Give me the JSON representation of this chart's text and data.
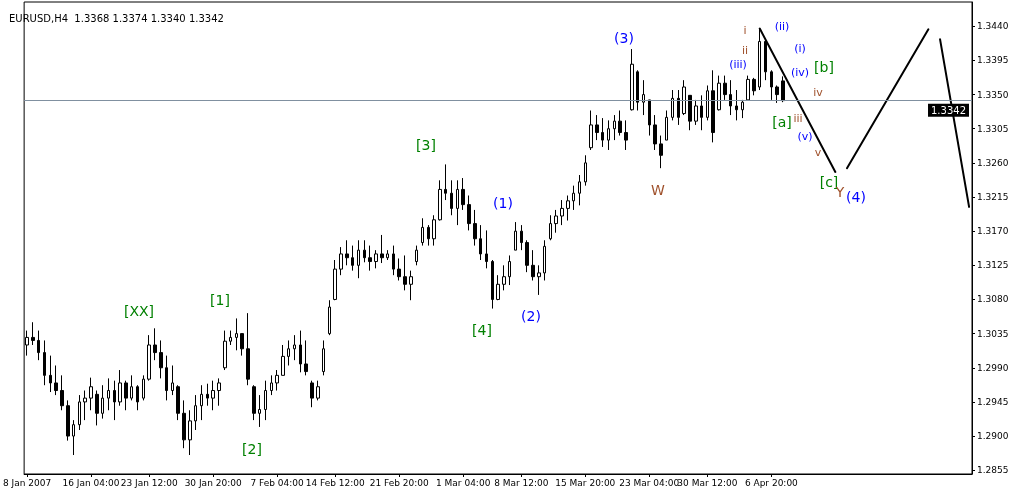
{
  "chart_data": {
    "type": "candlestick",
    "title": "EURUSD,H4  1.3368 1.3374 1.3340 1.3342",
    "color": "#000000",
    "categories": [
      "8 Jan 2007",
      null,
      null,
      null,
      null,
      null,
      null,
      null,
      null,
      null,
      null,
      "16 Jan 04:00",
      null,
      null,
      null,
      null,
      null,
      null,
      null,
      null,
      null,
      "23 Jan 12:00",
      null,
      null,
      null,
      null,
      null,
      null,
      null,
      null,
      null,
      null,
      "30 Jan 20:00",
      null,
      null,
      null,
      null,
      null,
      null,
      null,
      null,
      null,
      null,
      "7 Feb 04:00",
      null,
      null,
      null,
      null,
      null,
      null,
      null,
      null,
      null,
      "14 Feb 12:00",
      null,
      null,
      null,
      null,
      null,
      null,
      null,
      null,
      null,
      null,
      "21 Feb 20:00",
      null,
      null,
      null,
      null,
      null,
      null,
      null,
      null,
      null,
      null,
      "1 Mar 04:00",
      null,
      null,
      null,
      null,
      null,
      null,
      null,
      null,
      null,
      "8 Mar 12:00",
      null,
      null,
      null,
      null,
      null,
      null,
      null,
      null,
      null,
      null,
      "15 Mar 20:00",
      null,
      null,
      null,
      null,
      null,
      null,
      null,
      null,
      null,
      null,
      "23 Mar 04:00",
      null,
      null,
      null,
      null,
      null,
      null,
      null,
      null,
      null,
      "30 Mar 12:00",
      null,
      null,
      null,
      null,
      null,
      null,
      null,
      null,
      null,
      null,
      "6 Apr 20:00",
      null,
      null,
      null,
      null,
      null,
      null,
      null,
      null,
      null,
      null,
      null,
      null,
      null,
      null,
      null,
      null,
      null,
      null,
      null,
      null,
      null,
      null,
      null,
      null,
      null,
      null,
      null,
      null,
      null,
      null,
      null,
      null,
      null,
      null
    ],
    "ohlc": [
      [
        1.302,
        1.3039,
        1.3006,
        1.303
      ],
      [
        1.303,
        1.305,
        1.302,
        1.3026
      ],
      [
        1.3026,
        1.3039,
        1.3,
        1.301
      ],
      [
        1.301,
        1.3026,
        1.2967,
        1.298
      ],
      [
        1.298,
        1.3006,
        1.2958,
        1.297
      ],
      [
        1.297,
        1.2993,
        1.2954,
        1.296
      ],
      [
        1.296,
        1.298,
        1.2934,
        1.294
      ],
      [
        1.294,
        1.2947,
        1.2894,
        1.29
      ],
      [
        1.29,
        1.2921,
        1.2875,
        1.2915
      ],
      [
        1.2915,
        1.2954,
        1.2908,
        1.2945
      ],
      [
        1.2945,
        1.296,
        1.2921,
        1.295
      ],
      [
        1.295,
        1.2977,
        1.2934,
        1.2965
      ],
      [
        1.2955,
        1.296,
        1.2914,
        1.293
      ],
      [
        1.293,
        1.2967,
        1.2923,
        1.295
      ],
      [
        1.295,
        1.2976,
        1.2934,
        1.296
      ],
      [
        1.296,
        1.2973,
        1.2921,
        1.2945
      ],
      [
        1.2945,
        1.2987,
        1.294,
        1.297
      ],
      [
        1.297,
        1.2973,
        1.2934,
        1.295
      ],
      [
        1.295,
        1.298,
        1.2947,
        1.2965
      ],
      [
        1.2965,
        1.2967,
        1.2934,
        1.2945
      ],
      [
        1.295,
        1.298,
        1.2947,
        1.2975
      ],
      [
        1.2975,
        1.3033,
        1.2973,
        1.302
      ],
      [
        1.302,
        1.3042,
        1.3,
        1.301
      ],
      [
        1.301,
        1.3026,
        1.2976,
        1.299
      ],
      [
        1.299,
        1.3006,
        1.2947,
        1.296
      ],
      [
        1.296,
        1.2993,
        1.2954,
        1.297
      ],
      [
        1.2965,
        1.2967,
        1.2921,
        1.293
      ],
      [
        1.293,
        1.2947,
        1.2884,
        1.2895
      ],
      [
        1.2895,
        1.2934,
        1.2875,
        1.292
      ],
      [
        1.292,
        1.2954,
        1.2908,
        1.294
      ],
      [
        1.294,
        1.2967,
        1.2921,
        1.2955
      ],
      [
        1.2955,
        1.2969,
        1.294,
        1.295
      ],
      [
        1.295,
        1.2973,
        1.2934,
        1.296
      ],
      [
        1.296,
        1.2976,
        1.294,
        1.297
      ],
      [
        1.299,
        1.3039,
        1.2987,
        1.3025
      ],
      [
        1.3025,
        1.3039,
        1.302,
        1.303
      ],
      [
        1.303,
        1.3055,
        1.3013,
        1.3035
      ],
      [
        1.3035,
        1.3035,
        1.3006,
        1.3015
      ],
      [
        1.3015,
        1.3062,
        1.2967,
        1.2975
      ],
      [
        1.2965,
        1.2967,
        1.2921,
        1.293
      ],
      [
        1.293,
        1.2954,
        1.2912,
        1.2935
      ],
      [
        1.2935,
        1.2973,
        1.2921,
        1.296
      ],
      [
        1.296,
        1.298,
        1.2954,
        1.297
      ],
      [
        1.297,
        1.2987,
        1.296,
        1.298
      ],
      [
        1.298,
        1.302,
        1.298,
        1.3005
      ],
      [
        1.3005,
        1.3026,
        1.2993,
        1.3015
      ],
      [
        1.3015,
        1.3033,
        1.3,
        1.302
      ],
      [
        1.302,
        1.3039,
        1.2984,
        1.2995
      ],
      [
        1.2995,
        1.3026,
        1.298,
        1.2985
      ],
      [
        1.297,
        1.2973,
        1.2938,
        1.295
      ],
      [
        1.295,
        1.2973,
        1.2947,
        1.2965
      ],
      [
        1.2985,
        1.3026,
        1.298,
        1.3015
      ],
      [
        1.3035,
        1.3079,
        1.3033,
        1.307
      ],
      [
        1.308,
        1.3132,
        1.3079,
        1.312
      ],
      [
        1.312,
        1.3149,
        1.3112,
        1.314
      ],
      [
        1.314,
        1.3158,
        1.3125,
        1.3135
      ],
      [
        1.3135,
        1.3151,
        1.3118,
        1.3125
      ],
      [
        1.3125,
        1.3158,
        1.3108,
        1.3145
      ],
      [
        1.3145,
        1.3158,
        1.3129,
        1.3135
      ],
      [
        1.3135,
        1.3151,
        1.3118,
        1.313
      ],
      [
        1.313,
        1.3145,
        1.3121,
        1.314
      ],
      [
        1.314,
        1.3165,
        1.3128,
        1.3135
      ],
      [
        1.3135,
        1.3145,
        1.3132,
        1.314
      ],
      [
        1.314,
        1.3151,
        1.3112,
        1.312
      ],
      [
        1.312,
        1.3134,
        1.3105,
        1.311
      ],
      [
        1.311,
        1.3138,
        1.3092,
        1.31
      ],
      [
        1.31,
        1.3118,
        1.3079,
        1.311
      ],
      [
        1.313,
        1.3151,
        1.3125,
        1.3145
      ],
      [
        1.3155,
        1.3187,
        1.3151,
        1.3175
      ],
      [
        1.3175,
        1.3178,
        1.3151,
        1.316
      ],
      [
        1.316,
        1.3191,
        1.3151,
        1.3185
      ],
      [
        1.3185,
        1.3237,
        1.3184,
        1.3225
      ],
      [
        1.3225,
        1.3258,
        1.3211,
        1.322
      ],
      [
        1.322,
        1.3237,
        1.3191,
        1.32
      ],
      [
        1.32,
        1.3237,
        1.3178,
        1.3225
      ],
      [
        1.3225,
        1.324,
        1.3198,
        1.3205
      ],
      [
        1.3205,
        1.3217,
        1.3171,
        1.318
      ],
      [
        1.318,
        1.3198,
        1.3151,
        1.316
      ],
      [
        1.316,
        1.3178,
        1.3132,
        1.314
      ],
      [
        1.314,
        1.3171,
        1.3121,
        1.313
      ],
      [
        1.313,
        1.3132,
        1.3068,
        1.308
      ],
      [
        1.308,
        1.3112,
        1.3079,
        1.31
      ],
      [
        1.31,
        1.3125,
        1.3092,
        1.311
      ],
      [
        1.311,
        1.3138,
        1.3099,
        1.313
      ],
      [
        1.3145,
        1.3182,
        1.3145,
        1.317
      ],
      [
        1.317,
        1.3178,
        1.3145,
        1.3155
      ],
      [
        1.3155,
        1.3158,
        1.3116,
        1.3125
      ],
      [
        1.3125,
        1.3145,
        1.3105,
        1.311
      ],
      [
        1.311,
        1.3125,
        1.3086,
        1.3115
      ],
      [
        1.3115,
        1.3158,
        1.3105,
        1.315
      ],
      [
        1.316,
        1.3191,
        1.3158,
        1.318
      ],
      [
        1.318,
        1.3198,
        1.3168,
        1.319
      ],
      [
        1.319,
        1.3211,
        1.3178,
        1.32
      ],
      [
        1.32,
        1.3217,
        1.3184,
        1.321
      ],
      [
        1.321,
        1.323,
        1.3198,
        1.322
      ],
      [
        1.322,
        1.3244,
        1.3204,
        1.3235
      ],
      [
        1.3235,
        1.327,
        1.323,
        1.326
      ],
      [
        1.328,
        1.3329,
        1.3277,
        1.331
      ],
      [
        1.331,
        1.3323,
        1.329,
        1.33
      ],
      [
        1.33,
        1.3319,
        1.3281,
        1.329
      ],
      [
        1.329,
        1.3316,
        1.3277,
        1.3305
      ],
      [
        1.3305,
        1.3323,
        1.329,
        1.3315
      ],
      [
        1.3315,
        1.3329,
        1.3296,
        1.33
      ],
      [
        1.33,
        1.3316,
        1.3277,
        1.329
      ],
      [
        1.333,
        1.341,
        1.3329,
        1.339
      ],
      [
        1.338,
        1.3382,
        1.3329,
        1.334
      ],
      [
        1.334,
        1.3369,
        1.3323,
        1.335
      ],
      [
        1.3343,
        1.3343,
        1.3296,
        1.331
      ],
      [
        1.331,
        1.3323,
        1.3277,
        1.3285
      ],
      [
        1.3285,
        1.3296,
        1.3253,
        1.327
      ],
      [
        1.329,
        1.3329,
        1.329,
        1.332
      ],
      [
        1.332,
        1.3356,
        1.3316,
        1.3345
      ],
      [
        1.3345,
        1.3356,
        1.331,
        1.332
      ],
      [
        1.3325,
        1.3369,
        1.3323,
        1.336
      ],
      [
        1.3349,
        1.3349,
        1.3303,
        1.3315
      ],
      [
        1.3315,
        1.3343,
        1.331,
        1.3335
      ],
      [
        1.3335,
        1.3349,
        1.3303,
        1.332
      ],
      [
        1.332,
        1.3362,
        1.3316,
        1.3355
      ],
      [
        1.3355,
        1.3382,
        1.3287,
        1.33
      ],
      [
        1.333,
        1.3375,
        1.3329,
        1.3365
      ],
      [
        1.3365,
        1.3375,
        1.3343,
        1.335
      ],
      [
        1.335,
        1.3369,
        1.3323,
        1.3335
      ],
      [
        1.3335,
        1.3356,
        1.3316,
        1.333
      ],
      [
        1.333,
        1.3343,
        1.3319,
        1.334
      ],
      [
        1.3343,
        1.3375,
        1.3343,
        1.337
      ],
      [
        1.337,
        1.3372,
        1.3349,
        1.3355
      ],
      [
        1.336,
        1.3437,
        1.3356,
        1.342
      ],
      [
        1.342,
        1.3422,
        1.3369,
        1.338
      ],
      [
        1.338,
        1.3382,
        1.3343,
        1.336
      ],
      [
        1.336,
        1.3362,
        1.3339,
        1.335
      ],
      [
        1.3368,
        1.3374,
        1.334,
        1.3342
      ],
      null,
      null,
      null,
      null,
      null,
      null,
      null,
      null,
      null,
      null,
      null,
      null,
      null,
      null,
      null,
      null,
      null,
      null,
      null,
      null,
      null,
      null,
      null,
      null,
      null,
      null,
      null,
      null,
      null,
      null,
      null,
      null
    ],
    "series": [
      {
        "type": "line",
        "color": "#000000",
        "values": [
          null,
          null,
          null,
          null,
          null,
          null,
          null,
          null,
          null,
          null,
          null,
          null,
          null,
          null,
          null,
          null,
          null,
          null,
          null,
          null,
          null,
          null,
          null,
          null,
          null,
          null,
          null,
          null,
          null,
          null,
          null,
          null,
          null,
          null,
          null,
          null,
          null,
          null,
          null,
          null,
          null,
          null,
          null,
          null,
          null,
          null,
          null,
          null,
          null,
          null,
          null,
          null,
          null,
          null,
          null,
          null,
          null,
          null,
          null,
          null,
          null,
          null,
          null,
          null,
          null,
          null,
          null,
          null,
          null,
          null,
          null,
          null,
          null,
          null,
          null,
          null,
          null,
          null,
          null,
          null,
          null,
          null,
          null,
          null,
          null,
          null,
          null,
          null,
          null,
          null,
          null,
          null,
          null,
          null,
          null,
          null,
          null,
          null,
          null,
          null,
          null,
          null,
          null,
          null,
          null,
          null,
          null,
          null,
          null,
          null,
          null,
          null,
          null,
          null,
          null,
          null,
          null,
          null,
          null,
          null,
          null,
          null,
          null,
          null,
          null,
          null,
          1.3437,
          null,
          null,
          null,
          null,
          null,
          null,
          null,
          null,
          null,
          null,
          null,
          null,
          1.3248,
          null,
          null,
          null,
          null,
          null,
          null,
          null,
          null,
          null,
          null,
          null,
          null,
          null,
          null,
          null,
          null,
          null,
          null,
          null,
          null,
          null,
          null,
          null
        ]
      },
      {
        "type": "line",
        "color": "#000000",
        "values": [
          null,
          null,
          null,
          null,
          null,
          null,
          null,
          null,
          null,
          null,
          null,
          null,
          null,
          null,
          null,
          null,
          null,
          null,
          null,
          null,
          null,
          null,
          null,
          null,
          null,
          null,
          null,
          null,
          null,
          null,
          null,
          null,
          null,
          null,
          null,
          null,
          null,
          null,
          null,
          null,
          null,
          null,
          null,
          null,
          null,
          null,
          null,
          null,
          null,
          null,
          null,
          null,
          null,
          null,
          null,
          null,
          null,
          null,
          null,
          null,
          null,
          null,
          null,
          null,
          null,
          null,
          null,
          null,
          null,
          null,
          null,
          null,
          null,
          null,
          null,
          null,
          null,
          null,
          null,
          null,
          null,
          null,
          null,
          null,
          null,
          null,
          null,
          null,
          null,
          null,
          null,
          null,
          null,
          null,
          null,
          null,
          null,
          null,
          null,
          null,
          null,
          null,
          null,
          null,
          null,
          null,
          null,
          null,
          null,
          null,
          null,
          null,
          null,
          null,
          null,
          null,
          null,
          null,
          null,
          null,
          null,
          null,
          null,
          null,
          null,
          null,
          null,
          null,
          null,
          null,
          null,
          null,
          null,
          null,
          null,
          null,
          null,
          null,
          null,
          null,
          null,
          1.3253,
          null,
          null,
          null,
          null,
          null,
          null,
          null,
          null,
          null,
          null,
          null,
          null,
          null,
          1.3436,
          null,
          null,
          null,
          null,
          null,
          null,
          null
        ]
      },
      {
        "type": "line",
        "color": "#000000",
        "values": [
          null,
          null,
          null,
          null,
          null,
          null,
          null,
          null,
          null,
          null,
          null,
          null,
          null,
          null,
          null,
          null,
          null,
          null,
          null,
          null,
          null,
          null,
          null,
          null,
          null,
          null,
          null,
          null,
          null,
          null,
          null,
          null,
          null,
          null,
          null,
          null,
          null,
          null,
          null,
          null,
          null,
          null,
          null,
          null,
          null,
          null,
          null,
          null,
          null,
          null,
          null,
          null,
          null,
          null,
          null,
          null,
          null,
          null,
          null,
          null,
          null,
          null,
          null,
          null,
          null,
          null,
          null,
          null,
          null,
          null,
          null,
          null,
          null,
          null,
          null,
          null,
          null,
          null,
          null,
          null,
          null,
          null,
          null,
          null,
          null,
          null,
          null,
          null,
          null,
          null,
          null,
          null,
          null,
          null,
          null,
          null,
          null,
          null,
          null,
          null,
          null,
          null,
          null,
          null,
          null,
          null,
          null,
          null,
          null,
          null,
          null,
          null,
          null,
          null,
          null,
          null,
          null,
          null,
          null,
          null,
          null,
          null,
          null,
          null,
          null,
          null,
          null,
          null,
          null,
          null,
          null,
          null,
          null,
          null,
          null,
          null,
          null,
          null,
          null,
          null,
          null,
          null,
          null,
          null,
          null,
          null,
          null,
          null,
          null,
          null,
          null,
          null,
          null,
          null,
          null,
          null,
          null,
          1.3423,
          null,
          null,
          null,
          null,
          1.3202
        ]
      }
    ],
    "ylim": [
      1.285,
      1.3472
    ],
    "yticks": [
      1.2855,
      {
        "value": 1.29,
        "label": "1.2900"
      },
      1.2945,
      {
        "value": 1.299,
        "label": "1.2990"
      },
      1.3035,
      {
        "value": 1.308,
        "label": "1.3080"
      },
      1.3125,
      {
        "value": 1.317,
        "label": "1.3170"
      },
      1.3215,
      {
        "value": 1.326,
        "label": "1.3260"
      },
      1.3305,
      {
        "value": 1.335,
        "label": "1.3350"
      },
      1.3395,
      {
        "value": 1.344,
        "label": "1.3440"
      }
    ],
    "ref_lines": [
      {
        "axis": "y",
        "value": 1.3342,
        "label": "1.3342",
        "color": "#8090a0"
      }
    ],
    "annotations": [
      "[XX]",
      "[1]",
      "[2]",
      "[3]",
      "[4]",
      "(1)",
      "(2)",
      "(3)",
      "W",
      "[a]",
      "[b]",
      "[c]",
      "Y",
      "(4)",
      "i",
      "ii",
      "(ii)",
      "(i)",
      "(iv)",
      "iv",
      "(iii)",
      "iii",
      "v",
      "(v)"
    ]
  }
}
